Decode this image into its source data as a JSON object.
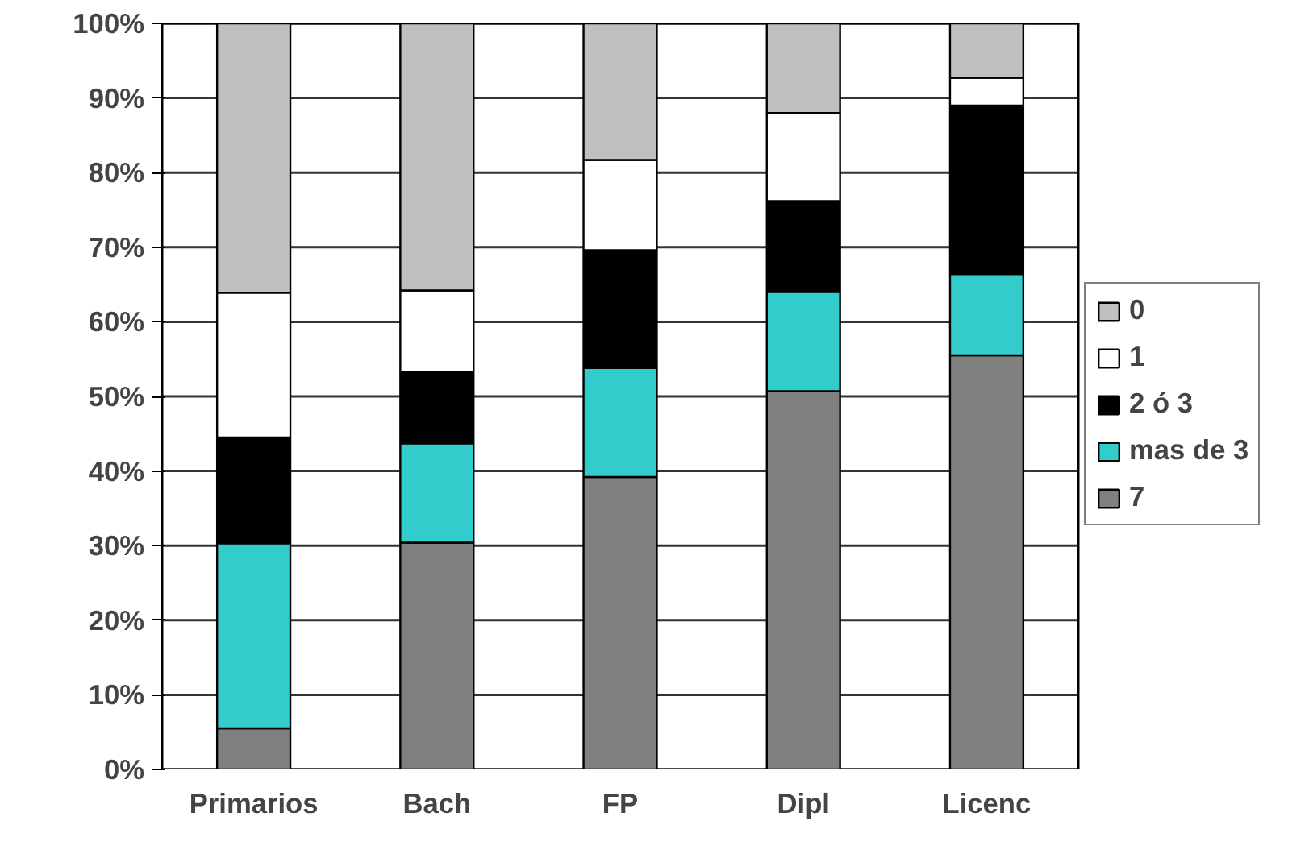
{
  "chart_data": {
    "type": "bar",
    "stacked": true,
    "categories": [
      "Primarios",
      "Bach",
      "FP",
      "Dipl",
      "Licenc"
    ],
    "series": [
      {
        "name": "7",
        "color": "#808080",
        "values": [
          5.5,
          30.4,
          39.2,
          50.7,
          55.5
        ]
      },
      {
        "name": "mas de 3",
        "color": "#33cccc",
        "values": [
          24.8,
          13.3,
          14.6,
          13.3,
          10.9
        ]
      },
      {
        "name": "2 ó 3",
        "color": "#000000",
        "values": [
          14.2,
          9.6,
          15.8,
          12.2,
          22.6
        ]
      },
      {
        "name": "1",
        "color": "#ffffff",
        "values": [
          19.4,
          10.9,
          12.1,
          11.8,
          3.7
        ]
      },
      {
        "name": "0",
        "color": "#c0c0c0",
        "values": [
          36.1,
          35.8,
          18.3,
          12.0,
          7.3
        ]
      }
    ],
    "ylim": [
      0,
      100
    ],
    "yticks": [
      {
        "value": 0,
        "label": "0%"
      },
      {
        "value": 10,
        "label": "10%"
      },
      {
        "value": 20,
        "label": "20%"
      },
      {
        "value": 30,
        "label": "30%"
      },
      {
        "value": 40,
        "label": "40%"
      },
      {
        "value": 50,
        "label": "50%"
      },
      {
        "value": 60,
        "label": "60%"
      },
      {
        "value": 70,
        "label": "70%"
      },
      {
        "value": 80,
        "label": "80%"
      },
      {
        "value": 90,
        "label": "90%"
      },
      {
        "value": 100,
        "label": "100%"
      }
    ],
    "grid": "y",
    "legend": "right"
  }
}
